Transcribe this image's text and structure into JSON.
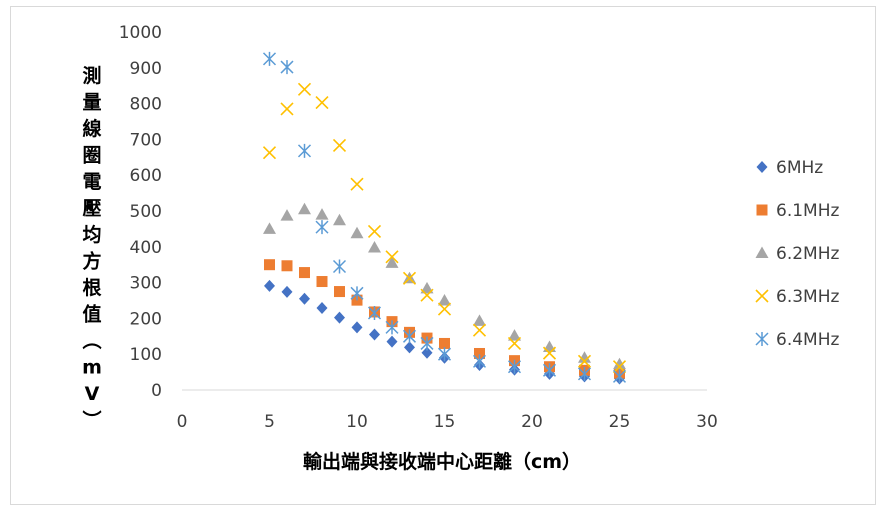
{
  "chart_data": {
    "type": "scatter",
    "title": "",
    "xlabel": "輸出端與接收端中心距離（cm）",
    "ylabel": "測量線圈電壓均方根值（mV）",
    "xlim": [
      0,
      30
    ],
    "ylim": [
      0,
      1000
    ],
    "xticks": [
      0,
      5,
      10,
      15,
      20,
      25,
      30
    ],
    "yticks": [
      0,
      100,
      200,
      300,
      400,
      500,
      600,
      700,
      800,
      900,
      1000
    ],
    "grid": false,
    "legend_position": "right",
    "series": [
      {
        "name": "6MHz",
        "marker": "diamond",
        "color": "#4472C4",
        "points": [
          [
            5,
            291
          ],
          [
            6,
            274
          ],
          [
            7,
            255
          ],
          [
            8,
            229
          ],
          [
            9,
            202
          ],
          [
            10,
            175
          ],
          [
            11,
            155
          ],
          [
            12,
            135
          ],
          [
            13,
            119
          ],
          [
            14,
            104
          ],
          [
            15,
            90
          ],
          [
            17,
            70
          ],
          [
            19,
            57
          ],
          [
            21,
            45
          ],
          [
            23,
            38
          ],
          [
            25,
            32
          ]
        ]
      },
      {
        "name": "6.1MHz",
        "marker": "square",
        "color": "#ED7D31",
        "points": [
          [
            5,
            350
          ],
          [
            6,
            347
          ],
          [
            7,
            328
          ],
          [
            8,
            303
          ],
          [
            9,
            275
          ],
          [
            10,
            251
          ],
          [
            11,
            218
          ],
          [
            12,
            191
          ],
          [
            13,
            161
          ],
          [
            14,
            145
          ],
          [
            15,
            130
          ],
          [
            17,
            102
          ],
          [
            19,
            82
          ],
          [
            21,
            65
          ],
          [
            23,
            55
          ],
          [
            25,
            47
          ]
        ]
      },
      {
        "name": "6.2MHz",
        "marker": "triangle",
        "color": "#A5A5A5",
        "points": [
          [
            5,
            450
          ],
          [
            6,
            487
          ],
          [
            7,
            505
          ],
          [
            8,
            490
          ],
          [
            9,
            474
          ],
          [
            10,
            438
          ],
          [
            11,
            398
          ],
          [
            12,
            355
          ],
          [
            13,
            312
          ],
          [
            14,
            284
          ],
          [
            15,
            250
          ],
          [
            17,
            193
          ],
          [
            19,
            152
          ],
          [
            21,
            120
          ],
          [
            23,
            90
          ],
          [
            25,
            72
          ]
        ]
      },
      {
        "name": "6.3MHz",
        "marker": "x",
        "color": "#FFC000",
        "points": [
          [
            5,
            663
          ],
          [
            6,
            785
          ],
          [
            7,
            840
          ],
          [
            8,
            803
          ],
          [
            9,
            683
          ],
          [
            10,
            575
          ],
          [
            11,
            443
          ],
          [
            12,
            372
          ],
          [
            13,
            312
          ],
          [
            14,
            265
          ],
          [
            15,
            226
          ],
          [
            17,
            167
          ],
          [
            19,
            130
          ],
          [
            21,
            103
          ],
          [
            23,
            80
          ],
          [
            25,
            65
          ]
        ]
      },
      {
        "name": "6.4MHz",
        "marker": "star",
        "color": "#5B9BD5",
        "points": [
          [
            5,
            925
          ],
          [
            6,
            902
          ],
          [
            7,
            668
          ],
          [
            8,
            455
          ],
          [
            9,
            345
          ],
          [
            10,
            270
          ],
          [
            11,
            215
          ],
          [
            12,
            175
          ],
          [
            13,
            150
          ],
          [
            14,
            130
          ],
          [
            15,
            100
          ],
          [
            17,
            80
          ],
          [
            19,
            65
          ],
          [
            21,
            55
          ],
          [
            23,
            45
          ],
          [
            25,
            38
          ]
        ]
      }
    ]
  }
}
